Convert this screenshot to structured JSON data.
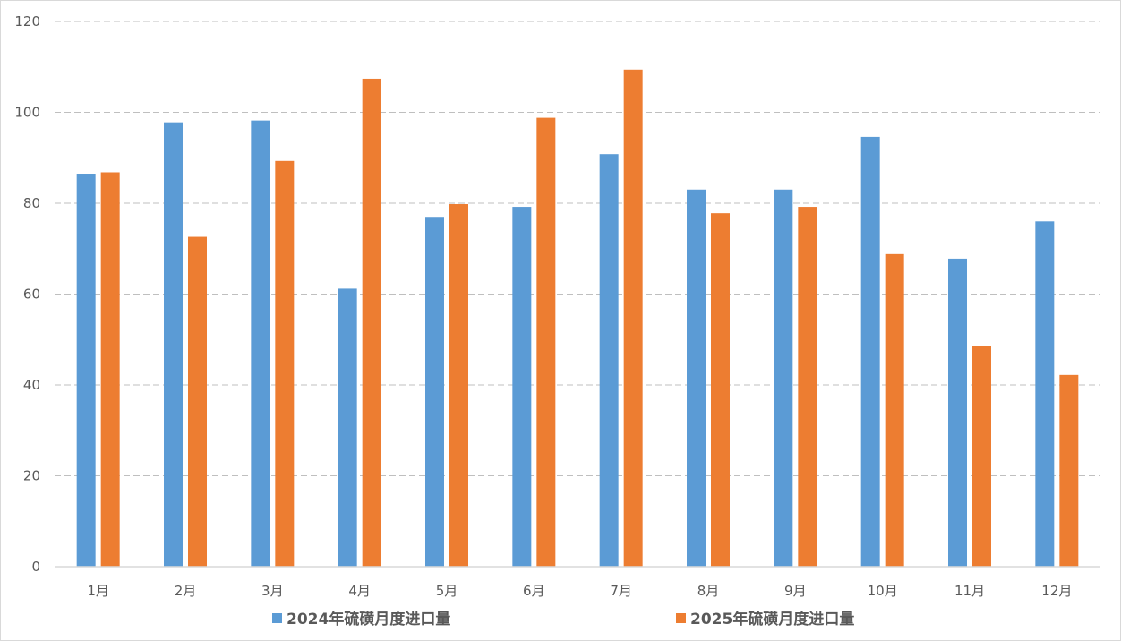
{
  "chart_data": {
    "type": "bar",
    "categories": [
      "1月",
      "2月",
      "3月",
      "4月",
      "5月",
      "6月",
      "7月",
      "8月",
      "9月",
      "10月",
      "11月",
      "12月"
    ],
    "series": [
      {
        "name": "2024年硫磺月度进口量",
        "color": "#5b9bd5",
        "values": [
          86.5,
          97.8,
          98.2,
          61.2,
          77.0,
          79.2,
          90.8,
          83.0,
          83.0,
          94.6,
          67.8,
          76.0
        ]
      },
      {
        "name": "2025年硫磺月度进口量",
        "color": "#ed7d31",
        "values": [
          86.8,
          72.6,
          89.3,
          107.4,
          79.8,
          98.8,
          109.4,
          77.8,
          79.2,
          68.8,
          48.6,
          42.2
        ]
      }
    ],
    "y_ticks": [
      "0",
      "20",
      "40",
      "60",
      "80",
      "100",
      "120"
    ],
    "ylim": [
      0,
      120
    ],
    "grid": true,
    "grid_color": "#bfbfbf",
    "axis_color": "#d9d9d9",
    "legend_position": "bottom",
    "title": "",
    "xlabel": "",
    "ylabel": ""
  }
}
